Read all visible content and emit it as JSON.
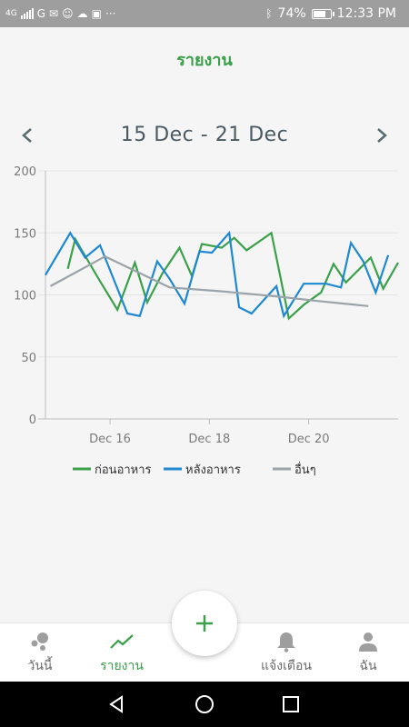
{
  "status_bar": {
    "network": "4G",
    "battery": "74%",
    "battery_level": 0.74,
    "time": "12:33 PM"
  },
  "header": {
    "title": "รายงาน"
  },
  "date_nav": {
    "range": "15 Dec - 21 Dec",
    "prev_icon": "chevron-left-icon",
    "next_icon": "chevron-right-icon"
  },
  "chart_data": {
    "type": "line",
    "title": "",
    "xlabel": "",
    "ylabel": "",
    "xlim": [
      14.7,
      21.8
    ],
    "ylim": [
      0,
      200
    ],
    "yticks": [
      0,
      50,
      100,
      150,
      200
    ],
    "ytick_labels": [
      "0",
      "50",
      "100",
      "150",
      "200"
    ],
    "xticks": [
      16,
      18,
      20
    ],
    "xtick_labels": [
      "Dec 16",
      "Dec 18",
      "Dec 20"
    ],
    "grid": true,
    "legend": "bottom",
    "series": [
      {
        "name": "ก่อนอาหาร",
        "color": "#3aa04a",
        "points": [
          [
            15.15,
            121
          ],
          [
            15.3,
            145
          ],
          [
            15.8,
            111
          ],
          [
            16.15,
            88
          ],
          [
            16.5,
            126
          ],
          [
            16.75,
            94
          ],
          [
            17.05,
            117
          ],
          [
            17.4,
            138
          ],
          [
            17.65,
            115
          ],
          [
            17.85,
            141
          ],
          [
            18.25,
            138
          ],
          [
            18.5,
            146
          ],
          [
            18.75,
            136
          ],
          [
            19.25,
            150
          ],
          [
            19.6,
            81
          ],
          [
            19.9,
            92
          ],
          [
            20.25,
            102
          ],
          [
            20.5,
            125
          ],
          [
            20.75,
            110
          ],
          [
            21.25,
            130
          ],
          [
            21.5,
            105
          ],
          [
            21.8,
            126
          ]
        ]
      },
      {
        "name": "หลังอาหาร",
        "color": "#1e88d0",
        "points": [
          [
            14.7,
            116
          ],
          [
            15.2,
            150
          ],
          [
            15.5,
            130
          ],
          [
            15.8,
            140
          ],
          [
            16.35,
            85
          ],
          [
            16.6,
            83
          ],
          [
            16.95,
            127
          ],
          [
            17.2,
            113
          ],
          [
            17.5,
            93
          ],
          [
            17.8,
            135
          ],
          [
            18.05,
            134
          ],
          [
            18.4,
            150
          ],
          [
            18.6,
            90
          ],
          [
            18.85,
            85
          ],
          [
            19.35,
            107
          ],
          [
            19.5,
            83
          ],
          [
            19.9,
            109
          ],
          [
            20.35,
            109
          ],
          [
            20.65,
            106
          ],
          [
            20.85,
            142
          ],
          [
            21.1,
            127
          ],
          [
            21.35,
            102
          ],
          [
            21.6,
            132
          ]
        ]
      },
      {
        "name": "อื่นๆ",
        "color": "#9aa3a8",
        "points": [
          [
            14.8,
            107
          ],
          [
            15.9,
            131
          ],
          [
            17.2,
            106
          ],
          [
            18.2,
            103
          ],
          [
            19.3,
            99
          ],
          [
            20.2,
            95
          ],
          [
            21.2,
            91
          ]
        ]
      }
    ]
  },
  "fab": {
    "label": "+"
  },
  "bottom_nav": {
    "today": "วันนี้",
    "report": "รายงาน",
    "alerts": "แจ้งเตือน",
    "me": "ฉัน"
  }
}
